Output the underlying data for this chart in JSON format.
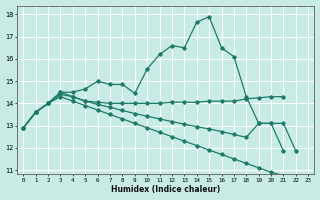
{
  "xlabel": "Humidex (Indice chaleur)",
  "bg_color": "#c8ebe6",
  "grid_color": "#ffffff",
  "line_color": "#1e7a68",
  "xlim": [
    -0.5,
    23.5
  ],
  "ylim": [
    10.8,
    18.4
  ],
  "yticks": [
    11,
    12,
    13,
    14,
    15,
    16,
    17,
    18
  ],
  "xticks": [
    0,
    1,
    2,
    3,
    4,
    5,
    6,
    7,
    8,
    9,
    10,
    11,
    12,
    13,
    14,
    15,
    16,
    17,
    18,
    19,
    20,
    21,
    22,
    23
  ],
  "series1_x": [
    0,
    1,
    2,
    3,
    4,
    5,
    6,
    7,
    8,
    9,
    10,
    11,
    12,
    13,
    14,
    15,
    16,
    17,
    18,
    19,
    20,
    21
  ],
  "series1_y": [
    12.9,
    13.6,
    14.0,
    14.5,
    14.5,
    14.65,
    15.0,
    14.85,
    14.85,
    14.45,
    15.55,
    16.2,
    16.6,
    16.5,
    17.65,
    17.9,
    16.5,
    16.1,
    14.3,
    13.1,
    13.1,
    11.85
  ],
  "series2_x": [
    0,
    1,
    2,
    3,
    4,
    5,
    6,
    7,
    8,
    9,
    10,
    11,
    12,
    13,
    14,
    15,
    16,
    17,
    18,
    19,
    20,
    21
  ],
  "series2_y": [
    12.9,
    13.6,
    14.0,
    14.5,
    14.3,
    14.1,
    14.05,
    14.0,
    14.0,
    14.0,
    14.0,
    14.0,
    14.05,
    14.05,
    14.05,
    14.1,
    14.1,
    14.1,
    14.2,
    14.25,
    14.3,
    14.3
  ],
  "series3_x": [
    0,
    1,
    2,
    3,
    4,
    5,
    6,
    7,
    8,
    9,
    10,
    11,
    12,
    13,
    14,
    15,
    16,
    17,
    18,
    19,
    20,
    21,
    22,
    23
  ],
  "series3_y": [
    12.9,
    13.6,
    14.0,
    14.4,
    14.3,
    14.1,
    13.95,
    13.82,
    13.68,
    13.54,
    13.42,
    13.3,
    13.18,
    13.06,
    12.95,
    12.85,
    12.73,
    12.6,
    12.47,
    13.1,
    13.1,
    13.1,
    11.85,
    null
  ],
  "series4_x": [
    0,
    1,
    2,
    3,
    4,
    5,
    6,
    7,
    8,
    9,
    10,
    11,
    12,
    13,
    14,
    15,
    16,
    17,
    18,
    19,
    20,
    21,
    22,
    23
  ],
  "series4_y": [
    12.9,
    13.6,
    14.0,
    14.3,
    14.1,
    13.9,
    13.7,
    13.5,
    13.3,
    13.1,
    12.9,
    12.7,
    12.5,
    12.3,
    12.1,
    11.9,
    11.7,
    11.5,
    11.3,
    11.1,
    10.9,
    10.75,
    10.7,
    10.7
  ]
}
